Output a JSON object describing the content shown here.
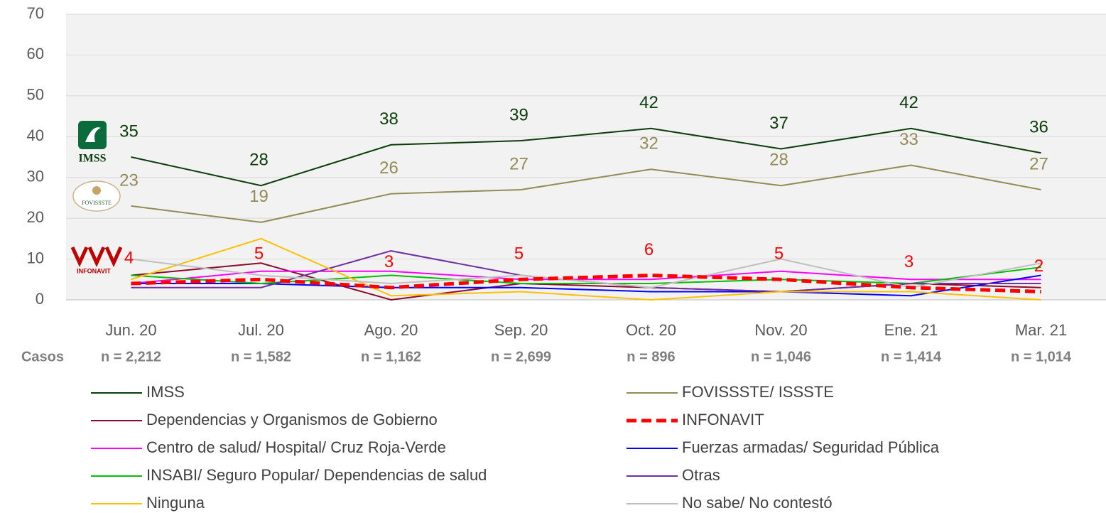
{
  "chart_data": {
    "type": "line",
    "categories": [
      "Jun. 20",
      "Jul. 20",
      "Ago. 20",
      "Sep. 20",
      "Oct. 20",
      "Nov. 20",
      "Ene. 21",
      "Mar. 21"
    ],
    "case_label": "Casos",
    "cases": [
      "n = 2,212",
      "n = 1,582",
      "n = 1,162",
      "n = 2,699",
      "n = 896",
      "n = 1,046",
      "n = 1,414",
      "n = 1,014"
    ],
    "logos": [
      "IMSS",
      "FOVISSSTE",
      "INFONAVIT"
    ],
    "ylim": [
      0,
      70
    ],
    "yticks": [
      0,
      10,
      20,
      30,
      40,
      50,
      60,
      70
    ],
    "grid": true,
    "series": [
      {
        "name": "IMSS",
        "color": "#0b3d0b",
        "values": [
          35,
          28,
          38,
          39,
          42,
          37,
          42,
          36
        ],
        "data_labels": true
      },
      {
        "name": "FOVISSSTE/ ISSSTE",
        "color": "#948a54",
        "values": [
          23,
          19,
          26,
          27,
          32,
          28,
          33,
          27
        ],
        "data_labels": true
      },
      {
        "name": "Dependencias y Organismos de Gobierno",
        "color": "#8b0a2e",
        "values": [
          6,
          9,
          0,
          4,
          3,
          2,
          4,
          3
        ]
      },
      {
        "name": "INFONAVIT",
        "color": "#ff0000",
        "values": [
          4,
          5,
          3,
          5,
          6,
          5,
          3,
          2
        ],
        "data_labels": true,
        "dash": true
      },
      {
        "name": "Centro de salud/ Hospital/ Cruz Roja-Verde",
        "color": "#ff00ff",
        "values": [
          4,
          7,
          7,
          5,
          5,
          7,
          5,
          5
        ]
      },
      {
        "name": "Fuerzas armadas/ Seguridad Pública",
        "color": "#0000ff",
        "values": [
          4,
          4,
          3,
          3,
          2,
          2,
          1,
          6
        ]
      },
      {
        "name": "INSABI/ Seguro Popular/ Dependencias de salud",
        "color": "#00c000",
        "values": [
          6,
          4,
          6,
          4,
          4,
          5,
          4,
          8
        ]
      },
      {
        "name": "Otras",
        "color": "#7030a0",
        "values": [
          3,
          3,
          12,
          6,
          3,
          2,
          4,
          4
        ]
      },
      {
        "name": "Ninguna",
        "color": "#ffc000",
        "values": [
          5,
          15,
          1,
          2,
          0,
          2,
          2,
          0
        ]
      },
      {
        "name": "No sabe/ No contestó",
        "color": "#bfbfbf",
        "values": [
          10,
          6,
          4,
          6,
          3,
          10,
          3,
          9
        ]
      }
    ]
  }
}
